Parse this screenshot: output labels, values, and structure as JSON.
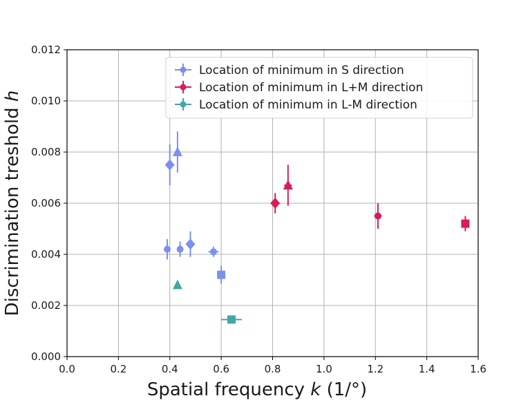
{
  "chart_data": {
    "type": "scatter",
    "xlabel": "Spatial frequency ",
    "xlabel_symbol": "k",
    "xlabel_unit": " (1/°)",
    "ylabel": "Discrimination treshold ",
    "ylabel_symbol": "h",
    "xlim": [
      0.0,
      1.6
    ],
    "ylim": [
      0.0,
      0.012
    ],
    "x_ticks": [
      0.0,
      0.2,
      0.4,
      0.6,
      0.8,
      1.0,
      1.2,
      1.4,
      1.6
    ],
    "x_tick_labels": [
      "0.0",
      "0.2",
      "0.4",
      "0.6",
      "0.8",
      "1.0",
      "1.2",
      "1.4",
      "1.6"
    ],
    "y_ticks": [
      0.0,
      0.002,
      0.004,
      0.006,
      0.008,
      0.01,
      0.012
    ],
    "y_tick_labels": [
      "0.000",
      "0.002",
      "0.004",
      "0.006",
      "0.008",
      "0.010",
      "0.012"
    ],
    "grid": true,
    "legend_position": "top-right",
    "series": [
      {
        "name": "Location of minimum in S direction",
        "color": "#7b8ff0",
        "points": [
          {
            "x": 0.4,
            "y": 0.0075,
            "xerr": 0.01,
            "yerr_low": 0.0008,
            "yerr_high": 0.0008,
            "marker": "diamond"
          },
          {
            "x": 0.43,
            "y": 0.008,
            "xerr": 0.01,
            "yerr_low": 0.0008,
            "yerr_high": 0.0008,
            "marker": "triangle"
          },
          {
            "x": 0.39,
            "y": 0.0042,
            "xerr": 0.01,
            "yerr_low": 0.0004,
            "yerr_high": 0.0004,
            "marker": "circle"
          },
          {
            "x": 0.44,
            "y": 0.0042,
            "xerr": 0.01,
            "yerr_low": 0.0003,
            "yerr_high": 0.0003,
            "marker": "circle"
          },
          {
            "x": 0.48,
            "y": 0.0044,
            "xerr": 0.01,
            "yerr_low": 0.0005,
            "yerr_high": 0.0005,
            "marker": "diamond"
          },
          {
            "x": 0.57,
            "y": 0.0041,
            "xerr": 0.02,
            "yerr_low": 0.0002,
            "yerr_high": 0.0002,
            "marker": "circle"
          },
          {
            "x": 0.6,
            "y": 0.0032,
            "xerr": 0.015,
            "yerr_low": 0.00035,
            "yerr_high": 0.00035,
            "marker": "square"
          }
        ]
      },
      {
        "name": "Location of minimum in L+M direction",
        "color": "#d81b5a",
        "points": [
          {
            "x": 0.81,
            "y": 0.006,
            "xerr": 0.015,
            "yerr_low": 0.0004,
            "yerr_high": 0.0004,
            "marker": "diamond"
          },
          {
            "x": 0.86,
            "y": 0.0067,
            "xerr": 0.015,
            "yerr_low": 0.0008,
            "yerr_high": 0.0008,
            "marker": "triangle"
          },
          {
            "x": 1.21,
            "y": 0.0055,
            "xerr": 0.015,
            "yerr_low": 0.0005,
            "yerr_high": 0.0005,
            "marker": "circle"
          },
          {
            "x": 1.55,
            "y": 0.0052,
            "xerr": 0.015,
            "yerr_low": 0.0003,
            "yerr_high": 0.0003,
            "marker": "square"
          }
        ]
      },
      {
        "name": "Location of minimum in L-M direction",
        "color": "#45a5a5",
        "points": [
          {
            "x": 0.43,
            "y": 0.0028,
            "xerr": 0.01,
            "yerr_low": 0.0001,
            "yerr_high": 0.0001,
            "marker": "triangle"
          },
          {
            "x": 0.64,
            "y": 0.00145,
            "xerr": 0.04,
            "yerr_low": 0.0,
            "yerr_high": 0.0,
            "marker": "square"
          }
        ]
      }
    ]
  }
}
